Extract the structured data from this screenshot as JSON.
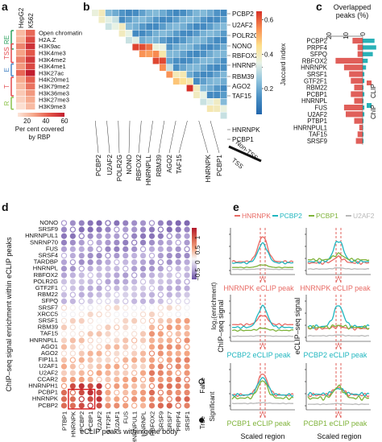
{
  "panel_letters": [
    "a",
    "b",
    "c",
    "d",
    "e"
  ],
  "chart_data": [
    {
      "id": "a",
      "type": "heatmap",
      "columns": [
        "HepG2",
        "K562"
      ],
      "rows": [
        "Open chromatin",
        "H2A.Z",
        "H3K9ac",
        "H3K4me3",
        "H3K4me2",
        "H3K4me1",
        "H3K27ac",
        "H4K20me1",
        "H3K79me2",
        "H3K36me3",
        "H3K27me3",
        "H3K9me3"
      ],
      "values": [
        [
          22,
          40
        ],
        [
          24,
          47
        ],
        [
          34,
          54
        ],
        [
          28,
          44
        ],
        [
          35,
          52
        ],
        [
          30,
          48
        ],
        [
          40,
          60
        ],
        [
          26,
          42
        ],
        [
          22,
          38
        ],
        [
          18,
          30
        ],
        [
          16,
          26
        ],
        [
          12,
          22
        ]
      ],
      "groups": [
        {
          "label": "RE",
          "color": "#2ca25f",
          "from": 0,
          "to": 2
        },
        {
          "label": "TSS",
          "color": "#e3484c",
          "from": 2,
          "to": 4
        },
        {
          "label": "E",
          "color": "#4a86c5",
          "from": 5,
          "to": 6
        },
        {
          "label": "T",
          "color": "#e3484c",
          "from": 7,
          "to": 9
        },
        {
          "label": "R",
          "color": "#8bc34a",
          "from": 10,
          "to": 11
        }
      ],
      "colorbar": {
        "ticks": [
          "20",
          "40",
          "60"
        ],
        "label": "Per cent covered\nby RBP",
        "min": 10,
        "max": 60
      }
    },
    {
      "id": "b",
      "type": "heatmap",
      "rbps": [
        "PCBP2",
        "U2AF2",
        "POLR2G",
        "NONO",
        "RBFOX2",
        "HNRNPLL",
        "RBM39",
        "AGO2",
        "TAF15",
        "HNRNPK",
        "PCBP1"
      ],
      "right_labels": [
        "PCBP2",
        "U2AF2",
        "POLR2G",
        "NONO",
        "RBFOX2",
        "HNRNPLL",
        "RBM39",
        "AGO2",
        "TAF15",
        "HNRNPK",
        "PCBP1"
      ],
      "bottom_labels": [
        "PCBP2",
        "U2AF2",
        "POLR2G",
        "NONO",
        "RBFOX2",
        "HNRNPLL",
        "RBM39",
        "AGO2",
        "TAF15",
        "HNRNPK",
        "PCBP1"
      ],
      "split_labels": [
        "Non-TSS",
        "TSS"
      ],
      "colorbar": {
        "ticks": [
          "0.6",
          "0.4",
          "0.2"
        ],
        "label": "Jaccard index",
        "min": 0.05,
        "max": 0.65
      }
    },
    {
      "id": "c",
      "type": "bar",
      "title": "Overlapped\npeaks (%)",
      "ticks": [
        "20",
        "10",
        "0"
      ],
      "categories": [
        "PCBP2",
        "PRPF4",
        "SFPQ",
        "RBFOX2",
        "HNRNPK",
        "SRSF1",
        "GTF2F1",
        "RBM22",
        "PCBP1",
        "HNRNPL",
        "FUS",
        "U2AF2",
        "PTBP1",
        "HNRNPUL1",
        "TAF15",
        "SRSF9"
      ],
      "series": [
        {
          "name": "CLIP",
          "color": "#e05f5a",
          "values": [
            6,
            3,
            3,
            16,
            11,
            8,
            7,
            5,
            7,
            5,
            11,
            10,
            5,
            2,
            3,
            4
          ]
        },
        {
          "name": "ChIP",
          "color": "#2ab1b7",
          "values": [
            7,
            8,
            6,
            3,
            2,
            1,
            1,
            0.5,
            1,
            0.5,
            1,
            1,
            0.5,
            0.3,
            0.5,
            0.5
          ]
        }
      ],
      "xlim": [
        0,
        20
      ],
      "legend": "right"
    },
    {
      "id": "d",
      "type": "scatter",
      "ylabel": "ChIP–seq signal enrichment within eCLIP peaks",
      "xlabel": "eCLIP peaks within gene body",
      "rows": [
        "NONO",
        "SRSF9",
        "HNRNPUL1",
        "SNRNP70",
        "FUS",
        "SRSF4",
        "TARDBP",
        "HNRNPL",
        "RBFOX2",
        "POLR2G",
        "GTF2F1",
        "RBM22",
        "SFPQ",
        "SRSF7",
        "XRCC5",
        "SRSF1",
        "RBM39",
        "TAF15",
        "HNRNPLL",
        "AGO1",
        "AGO2",
        "FIP1L1",
        "U2AF1",
        "U2AF2",
        "CCAR2",
        "HNRNPH1",
        "PCBP1",
        "HNRNPK",
        "PCBP2"
      ],
      "columns": [
        "PTBP1",
        "HNRNPK",
        "PCBP2",
        "PCBP1",
        "U2AF2",
        "GTF2F1",
        "U2AF1",
        "FUS",
        "HNRNPUL1",
        "HNRNPL",
        "RBFOX2",
        "SRSF9",
        "SRSF7",
        "PRPF4",
        "SRSF1"
      ],
      "colorbar": {
        "ticks": [
          "1",
          "0.5",
          "0",
          "−0.5"
        ],
        "label": "log₂(enrichment)",
        "min": -0.8,
        "max": 1.3
      },
      "legend": {
        "title": "Significant",
        "entries": [
          "True",
          "False"
        ]
      }
    },
    {
      "id": "e",
      "type": "line",
      "legend": [
        "HNRNPK",
        "PCBP2",
        "PCBP1",
        "U2AF2"
      ],
      "colors": {
        "HNRNPK": "#e86a64",
        "PCBP2": "#1fb6bf",
        "PCBP1": "#7fb33a",
        "U2AF2": "#b8b8b8"
      },
      "ylabel_left": "ChIP–seq signal",
      "ylabel_right": "eCLIP–seq signal",
      "xlabel": "Scaled region",
      "peak_labels": [
        "HNRNPK eCLIP peak",
        "PCBP2 eCLIP peak",
        "PCBP1 eCLIP peak"
      ],
      "peak_label_colors": [
        "#e86a64",
        "#1fb6bf",
        "#7fb33a"
      ]
    }
  ]
}
